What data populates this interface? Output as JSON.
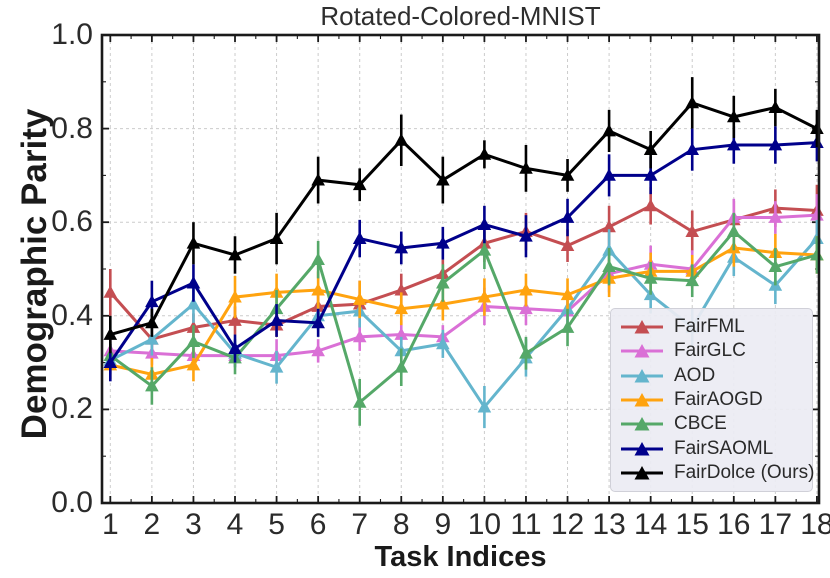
{
  "figure": {
    "title": "Rotated-Colored-MNIST",
    "xlabel": "Task Indices",
    "ylabel": "Demographic Parity"
  },
  "chart_data": {
    "type": "line",
    "title": "Rotated-Colored-MNIST",
    "xlabel": "Task Indices",
    "ylabel": "Demographic Parity",
    "grid": true,
    "legend_position": "lower right",
    "marker": "triangle-up",
    "error_bars": true,
    "x": [
      1,
      2,
      3,
      4,
      5,
      6,
      7,
      8,
      9,
      10,
      11,
      12,
      13,
      14,
      15,
      16,
      17,
      18
    ],
    "xlim": [
      0.8,
      18.05
    ],
    "ylim": [
      0.0,
      1.0
    ],
    "yticks": [
      0.0,
      0.2,
      0.4,
      0.6,
      0.8,
      1.0
    ],
    "ytick_labels": [
      "0.0",
      "0.2",
      "0.4",
      "0.6",
      "0.8",
      "1.0"
    ],
    "ygrid_values": [
      0.2,
      0.4,
      0.6,
      0.8
    ],
    "axis_color": "#1a1a1a",
    "grid_color": "#cccccc",
    "series": [
      {
        "name": "FairFML",
        "color": "#c44e52",
        "values": [
          0.45,
          0.35,
          0.375,
          0.39,
          0.38,
          0.42,
          0.425,
          0.455,
          0.49,
          0.555,
          0.58,
          0.55,
          0.59,
          0.635,
          0.58,
          0.605,
          0.63,
          0.625
        ],
        "errors": [
          0.05,
          0.03,
          0.03,
          0.03,
          0.025,
          0.03,
          0.05,
          0.035,
          0.03,
          0.04,
          0.04,
          0.035,
          0.045,
          0.04,
          0.045,
          0.04,
          0.04,
          0.055
        ]
      },
      {
        "name": "FairGLC",
        "color": "#da70d6",
        "values": [
          0.325,
          0.32,
          0.315,
          0.315,
          0.315,
          0.325,
          0.355,
          0.36,
          0.355,
          0.42,
          0.415,
          0.41,
          0.49,
          0.51,
          0.5,
          0.61,
          0.61,
          0.615
        ],
        "errors": [
          0.03,
          0.025,
          0.03,
          0.025,
          0.035,
          0.025,
          0.03,
          0.03,
          0.025,
          0.04,
          0.035,
          0.03,
          0.04,
          0.04,
          0.04,
          0.04,
          0.035,
          0.045
        ]
      },
      {
        "name": "AOD",
        "color": "#64b5cd",
        "values": [
          0.305,
          0.35,
          0.425,
          0.32,
          0.29,
          0.4,
          0.41,
          0.325,
          0.34,
          0.205,
          0.31,
          0.415,
          0.54,
          0.445,
          0.375,
          0.525,
          0.465,
          0.565
        ],
        "errors": [
          0.03,
          0.035,
          0.04,
          0.03,
          0.035,
          0.03,
          0.035,
          0.03,
          0.03,
          0.045,
          0.04,
          0.03,
          0.045,
          0.04,
          0.04,
          0.04,
          0.04,
          0.04
        ]
      },
      {
        "name": "FairAOGD",
        "color": "#ffa30f",
        "values": [
          0.295,
          0.275,
          0.295,
          0.44,
          0.45,
          0.455,
          0.435,
          0.415,
          0.425,
          0.44,
          0.455,
          0.445,
          0.48,
          0.495,
          0.495,
          0.545,
          0.535,
          0.53
        ],
        "errors": [
          0.03,
          0.035,
          0.035,
          0.045,
          0.04,
          0.04,
          0.04,
          0.035,
          0.035,
          0.04,
          0.035,
          0.035,
          0.04,
          0.04,
          0.035,
          0.04,
          0.04,
          0.04
        ]
      },
      {
        "name": "CBCE",
        "color": "#55a868",
        "values": [
          0.315,
          0.25,
          0.345,
          0.31,
          0.415,
          0.52,
          0.215,
          0.29,
          0.47,
          0.54,
          0.32,
          0.375,
          0.505,
          0.48,
          0.475,
          0.58,
          0.505,
          0.53
        ],
        "errors": [
          0.03,
          0.04,
          0.035,
          0.035,
          0.04,
          0.04,
          0.05,
          0.04,
          0.04,
          0.04,
          0.035,
          0.04,
          0.04,
          0.035,
          0.035,
          0.04,
          0.04,
          0.04
        ]
      },
      {
        "name": "FairSAOML",
        "color": "#00008b",
        "values": [
          0.3,
          0.43,
          0.47,
          0.33,
          0.39,
          0.385,
          0.565,
          0.545,
          0.555,
          0.595,
          0.57,
          0.61,
          0.7,
          0.7,
          0.755,
          0.765,
          0.765,
          0.77
        ],
        "errors": [
          0.04,
          0.045,
          0.04,
          0.03,
          0.035,
          0.03,
          0.04,
          0.035,
          0.035,
          0.04,
          0.045,
          0.04,
          0.045,
          0.04,
          0.045,
          0.04,
          0.04,
          0.04
        ]
      },
      {
        "name": "FairDolce (Ours)",
        "color": "#000000",
        "values": [
          0.36,
          0.385,
          0.555,
          0.53,
          0.565,
          0.69,
          0.68,
          0.775,
          0.69,
          0.745,
          0.715,
          0.7,
          0.795,
          0.755,
          0.855,
          0.825,
          0.845,
          0.8
        ],
        "errors": [
          0.04,
          0.03,
          0.045,
          0.04,
          0.055,
          0.05,
          0.035,
          0.055,
          0.05,
          0.03,
          0.05,
          0.035,
          0.045,
          0.04,
          0.055,
          0.045,
          0.04,
          0.04
        ]
      }
    ]
  }
}
